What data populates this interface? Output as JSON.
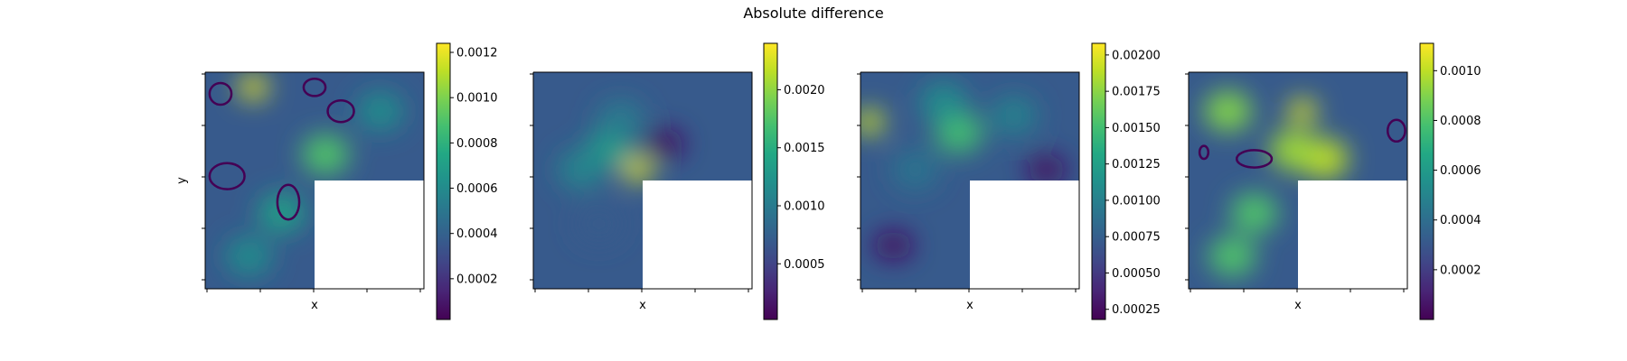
{
  "figure": {
    "title": "Absolute difference"
  },
  "chart_data": [
    {
      "type": "heatmap",
      "title": "",
      "xlabel": "x",
      "ylabel": "y",
      "colormap": "viridis",
      "domain_shape": "L-shape (upper-right... lower-right quadrant empty)",
      "colorbar": {
        "min": 2e-05,
        "max": 0.00124,
        "ticks": [
          0.0002,
          0.0004,
          0.0006,
          0.0008,
          0.001,
          0.0012
        ],
        "tick_labels": [
          "0.0002",
          "0.0004",
          "0.0006",
          "0.0008",
          "0.0010",
          "0.0012"
        ]
      },
      "hot_spots": [
        {
          "x": 0.22,
          "y": 0.93,
          "value": 0.0012
        },
        {
          "x": 0.55,
          "y": 0.62,
          "value": 0.0009
        },
        {
          "x": 0.35,
          "y": 0.35,
          "value": 0.0007
        },
        {
          "x": 0.2,
          "y": 0.15,
          "value": 0.0006
        },
        {
          "x": 0.8,
          "y": 0.82,
          "value": 0.0006
        }
      ],
      "zero_contours": [
        {
          "x": 0.07,
          "y": 0.9,
          "rx": 0.05,
          "ry": 0.05
        },
        {
          "x": 0.5,
          "y": 0.93,
          "rx": 0.05,
          "ry": 0.04
        },
        {
          "x": 0.62,
          "y": 0.82,
          "rx": 0.06,
          "ry": 0.05
        },
        {
          "x": 0.1,
          "y": 0.52,
          "rx": 0.08,
          "ry": 0.06
        },
        {
          "x": 0.38,
          "y": 0.4,
          "rx": 0.05,
          "ry": 0.08
        }
      ]
    },
    {
      "type": "heatmap",
      "title": "",
      "xlabel": "x",
      "ylabel": "",
      "colormap": "viridis",
      "colorbar": {
        "min": 2e-05,
        "max": 0.0024,
        "ticks": [
          0.0005,
          0.001,
          0.0015,
          0.002
        ],
        "tick_labels": [
          "0.0005",
          "0.0010",
          "0.0015",
          "0.0020"
        ]
      },
      "hot_spots": [
        {
          "x": 0.48,
          "y": 0.55,
          "value": 0.0023
        },
        {
          "x": 0.35,
          "y": 0.65,
          "value": 0.0013
        },
        {
          "x": 0.22,
          "y": 0.55,
          "value": 0.0011
        },
        {
          "x": 0.4,
          "y": 0.78,
          "value": 0.001
        },
        {
          "x": 0.3,
          "y": 0.3,
          "value": 0.0007
        }
      ],
      "low_spots": [
        {
          "x": 0.6,
          "y": 0.67,
          "value": 0.0001
        }
      ]
    },
    {
      "type": "heatmap",
      "title": "",
      "xlabel": "x",
      "ylabel": "",
      "colormap": "viridis",
      "colorbar": {
        "min": 0.00018,
        "max": 0.00208,
        "ticks": [
          0.00025,
          0.0005,
          0.00075,
          0.001,
          0.00125,
          0.0015,
          0.00175,
          0.002
        ],
        "tick_labels": [
          "0.00025",
          "0.00050",
          "0.00075",
          "0.00100",
          "0.00125",
          "0.00150",
          "0.00175",
          "0.00200"
        ]
      },
      "hot_spots": [
        {
          "x": 0.04,
          "y": 0.77,
          "value": 0.00195
        },
        {
          "x": 0.45,
          "y": 0.72,
          "value": 0.0015
        },
        {
          "x": 0.38,
          "y": 0.86,
          "value": 0.0011
        },
        {
          "x": 0.7,
          "y": 0.8,
          "value": 0.001
        },
        {
          "x": 0.25,
          "y": 0.55,
          "value": 0.0009
        }
      ],
      "low_spots": [
        {
          "x": 0.15,
          "y": 0.2,
          "value": 0.00025
        },
        {
          "x": 0.85,
          "y": 0.55,
          "value": 0.00025
        }
      ]
    },
    {
      "type": "heatmap",
      "title": "",
      "xlabel": "x",
      "ylabel": "",
      "colormap": "viridis",
      "colorbar": {
        "min": 0.0,
        "max": 0.00111,
        "ticks": [
          0.0002,
          0.0004,
          0.0006,
          0.0008,
          0.001
        ],
        "tick_labels": [
          "0.0002",
          "0.0004",
          "0.0006",
          "0.0008",
          "0.0010"
        ]
      },
      "hot_spots": [
        {
          "x": 0.52,
          "y": 0.82,
          "value": 0.00105
        },
        {
          "x": 0.62,
          "y": 0.6,
          "value": 0.001
        },
        {
          "x": 0.48,
          "y": 0.64,
          "value": 0.00095
        },
        {
          "x": 0.18,
          "y": 0.82,
          "value": 0.0009
        },
        {
          "x": 0.3,
          "y": 0.35,
          "value": 0.0008
        },
        {
          "x": 0.2,
          "y": 0.15,
          "value": 0.0008
        }
      ],
      "zero_contours": [
        {
          "x": 0.3,
          "y": 0.6,
          "rx": 0.08,
          "ry": 0.04
        },
        {
          "x": 0.95,
          "y": 0.73,
          "rx": 0.04,
          "ry": 0.05
        },
        {
          "x": 0.07,
          "y": 0.63,
          "rx": 0.02,
          "ry": 0.03
        }
      ]
    }
  ]
}
